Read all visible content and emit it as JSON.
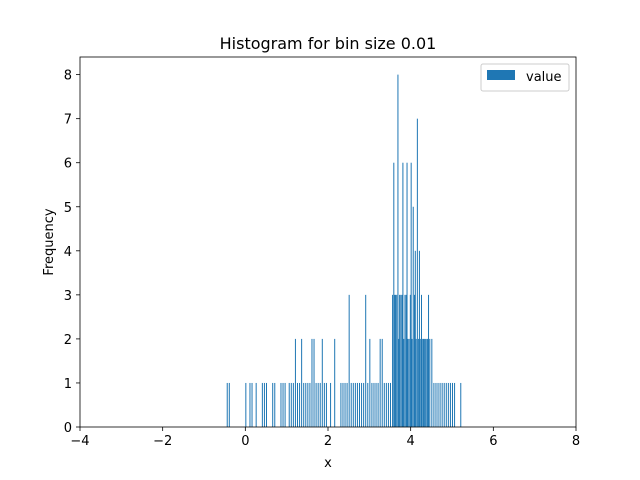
{
  "chart_data": {
    "type": "bar",
    "title": "Histogram for bin size 0.01",
    "xlabel": "x",
    "ylabel": "Frequency",
    "xlim": [
      -4,
      8
    ],
    "ylim": [
      0,
      8.4
    ],
    "xticks": [
      -4,
      -2,
      0,
      2,
      4,
      6,
      8
    ],
    "xtick_labels": [
      "−4",
      "−2",
      "0",
      "2",
      "4",
      "6",
      "8"
    ],
    "yticks": [
      0,
      1,
      2,
      3,
      4,
      5,
      6,
      7,
      8
    ],
    "ytick_labels": [
      "0",
      "1",
      "2",
      "3",
      "4",
      "5",
      "6",
      "7",
      "8"
    ],
    "bin_width": 0.01,
    "grid": false,
    "legend_position": "top-right",
    "color": "#1f77b4",
    "series": [
      {
        "name": "value",
        "x": [
          -0.45,
          -0.4,
          0.0,
          0.1,
          0.15,
          0.25,
          0.4,
          0.45,
          0.5,
          0.65,
          0.7,
          0.85,
          0.9,
          0.95,
          1.05,
          1.1,
          1.15,
          1.2,
          1.25,
          1.3,
          1.35,
          1.4,
          1.45,
          1.5,
          1.55,
          1.6,
          1.65,
          1.7,
          1.75,
          1.8,
          1.85,
          1.9,
          1.95,
          2.05,
          2.15,
          2.3,
          2.35,
          2.4,
          2.45,
          2.5,
          2.55,
          2.6,
          2.65,
          2.7,
          2.75,
          2.8,
          2.85,
          2.9,
          2.95,
          3.0,
          3.05,
          3.1,
          3.15,
          3.2,
          3.25,
          3.3,
          3.35,
          3.4,
          3.45,
          3.5,
          3.55,
          3.58,
          3.6,
          3.62,
          3.65,
          3.68,
          3.7,
          3.72,
          3.75,
          3.78,
          3.8,
          3.82,
          3.85,
          3.88,
          3.9,
          3.92,
          3.95,
          3.98,
          4.0,
          4.02,
          4.05,
          4.08,
          4.1,
          4.12,
          4.15,
          4.18,
          4.2,
          4.22,
          4.25,
          4.28,
          4.3,
          4.32,
          4.35,
          4.38,
          4.4,
          4.42,
          4.45,
          4.5,
          4.55,
          4.6,
          4.65,
          4.7,
          4.75,
          4.8,
          4.85,
          4.9,
          4.95,
          5.0,
          5.05,
          5.2
        ],
        "values": [
          1,
          1,
          1,
          1,
          1,
          1,
          1,
          1,
          1,
          1,
          1,
          1,
          1,
          1,
          1,
          1,
          1,
          2,
          1,
          1,
          2,
          1,
          1,
          1,
          1,
          2,
          2,
          1,
          1,
          1,
          2,
          1,
          1,
          1,
          2,
          1,
          1,
          1,
          1,
          3,
          1,
          1,
          1,
          1,
          1,
          1,
          1,
          3,
          1,
          2,
          1,
          1,
          1,
          1,
          2,
          2,
          1,
          1,
          1,
          1,
          3,
          6,
          3,
          3,
          3,
          8,
          2,
          3,
          3,
          3,
          6,
          2,
          3,
          3,
          6,
          2,
          2,
          3,
          6,
          2,
          5,
          3,
          4,
          2,
          7,
          2,
          4,
          2,
          3,
          2,
          2,
          2,
          2,
          2,
          2,
          3,
          2,
          2,
          1,
          1,
          1,
          1,
          1,
          1,
          1,
          1,
          1,
          1,
          1,
          1
        ]
      }
    ]
  }
}
